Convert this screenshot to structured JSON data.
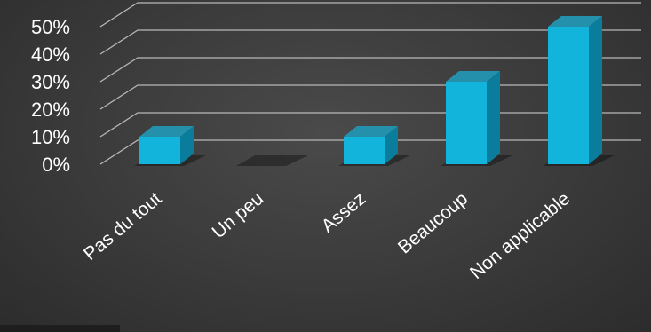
{
  "chart_data": {
    "type": "bar",
    "categories": [
      "Pas du tout",
      "Un peu",
      "Assez",
      "Beaucoup",
      "Non applicable"
    ],
    "values": [
      10,
      0,
      10,
      30,
      50
    ],
    "ylim": [
      0,
      50
    ],
    "yticks": [
      "0%",
      "10%",
      "20%",
      "30%",
      "40%",
      "50%"
    ],
    "grid": true,
    "legend": "none",
    "colors": {
      "bar_front": "#12b4dc",
      "bar_side": "#0a7c9c",
      "bar_top": "#2490ab",
      "grid": "#b8b8b8",
      "text": "#ffffff"
    }
  }
}
